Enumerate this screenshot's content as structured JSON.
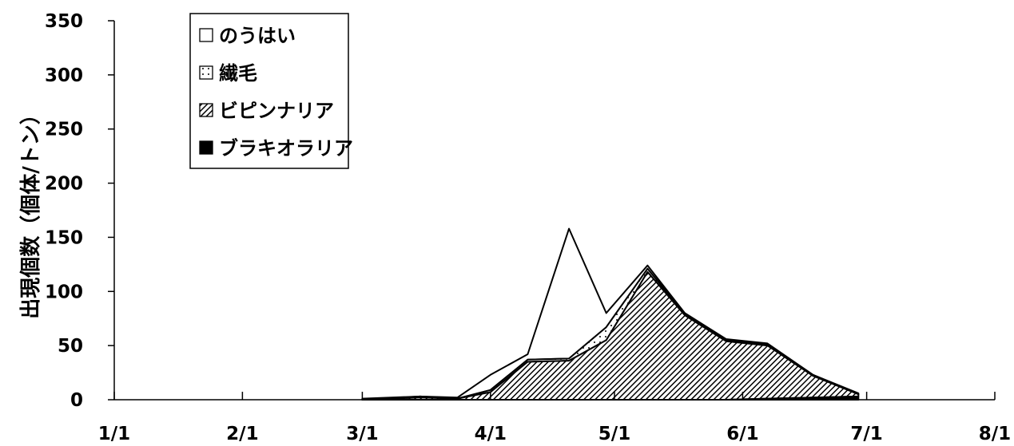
{
  "chart_data": {
    "type": "area",
    "stacked": true,
    "ylabel": "出現個数（個体/トン）",
    "ylim": [
      0,
      350
    ],
    "yticks": [
      "0",
      "50",
      "100",
      "150",
      "200",
      "250",
      "300",
      "350"
    ],
    "xticks": [
      "1/1",
      "2/1",
      "3/1",
      "4/1",
      "5/1",
      "6/1",
      "7/1",
      "8/1"
    ],
    "x": [
      "3/1",
      "3/15",
      "3/24",
      "4/1",
      "4/10",
      "4/20",
      "4/29",
      "5/9",
      "5/18",
      "5/28",
      "6/7",
      "6/18",
      "6/29"
    ],
    "series": [
      {
        "name": "ブラキオラリア",
        "pattern": "solid",
        "values": [
          0,
          0,
          0,
          0,
          0,
          0,
          0,
          0,
          0,
          0,
          1,
          2,
          3
        ]
      },
      {
        "name": "ビピンナリア",
        "pattern": "hatched",
        "values": [
          0,
          2,
          1,
          7,
          35,
          36,
          55,
          118,
          78,
          54,
          49,
          20,
          2
        ]
      },
      {
        "name": "繊毛",
        "pattern": "dotted",
        "values": [
          0,
          1,
          0,
          2,
          2,
          2,
          12,
          3,
          1,
          1,
          1,
          1,
          0
        ]
      },
      {
        "name": "のうはい",
        "pattern": "empty",
        "values": [
          1,
          0,
          1,
          14,
          5,
          120,
          13,
          3,
          1,
          1,
          1,
          0,
          1
        ]
      }
    ],
    "legend_order": [
      "のうはい",
      "繊毛",
      "ビピンナリア",
      "ブラキオラリア"
    ],
    "legend_position": "top-left",
    "grid": false
  }
}
